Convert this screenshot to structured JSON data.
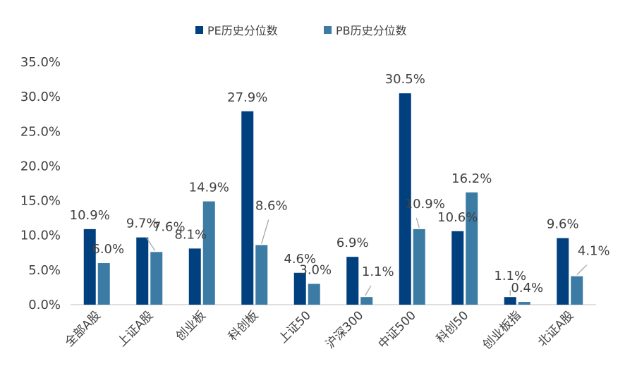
{
  "chart_data": {
    "type": "bar",
    "categories": [
      "全部A股",
      "上证A股",
      "创业板",
      "科创板",
      "上证50",
      "沪深300",
      "中证500",
      "科创50",
      "创业板指",
      "北证A股"
    ],
    "series": [
      {
        "name": "PE历史分位数",
        "color": "#00407F",
        "values": [
          10.9,
          9.7,
          8.1,
          27.9,
          4.6,
          6.9,
          30.5,
          10.6,
          1.1,
          9.6
        ],
        "labels": [
          "10.9%",
          "9.7%",
          "8.1%",
          "27.9%",
          "4.6%",
          "6.9%",
          "30.5%",
          "10.6%",
          "1.1%",
          "9.6%"
        ]
      },
      {
        "name": "PB历史分位数",
        "color": "#3C7BA4",
        "values": [
          6.0,
          7.6,
          14.9,
          8.6,
          3.0,
          1.1,
          10.9,
          16.2,
          0.4,
          4.1
        ],
        "labels": [
          "6.0%",
          "7.6%",
          "14.9%",
          "8.6%",
          "3.0%",
          "1.1%",
          "10.9%",
          "16.2%",
          "0.4%",
          "4.1%"
        ]
      }
    ],
    "yticks": [
      "0.0%",
      "5.0%",
      "10.0%",
      "15.0%",
      "20.0%",
      "25.0%",
      "30.0%",
      "35.0%"
    ],
    "ylim": [
      0,
      35
    ],
    "legend_position": "top-center",
    "grid": false,
    "title": "",
    "xlabel": "",
    "ylabel": ""
  }
}
